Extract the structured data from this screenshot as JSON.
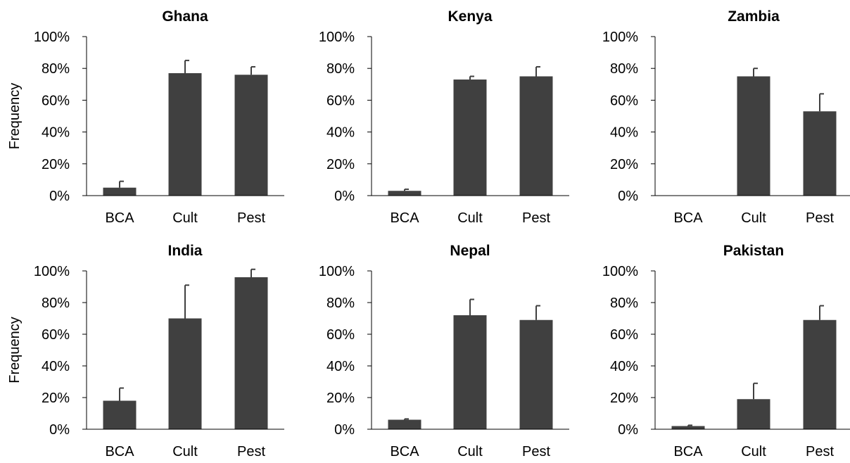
{
  "chart_data": [
    {
      "type": "bar",
      "title": "Ghana",
      "ylabel": "Frequency",
      "categories": [
        "BCA",
        "Cult",
        "Pest"
      ],
      "values": [
        0.05,
        0.77,
        0.76
      ],
      "errors": [
        0.04,
        0.08,
        0.05
      ],
      "ylim": [
        0,
        1
      ],
      "yticks": [
        "0%",
        "20%",
        "40%",
        "60%",
        "80%",
        "100%"
      ]
    },
    {
      "type": "bar",
      "title": "Kenya",
      "ylabel": "",
      "categories": [
        "BCA",
        "Cult",
        "Pest"
      ],
      "values": [
        0.03,
        0.73,
        0.75
      ],
      "errors": [
        0.01,
        0.02,
        0.06
      ],
      "ylim": [
        0,
        1
      ],
      "yticks": [
        "0%",
        "20%",
        "40%",
        "60%",
        "80%",
        "100%"
      ]
    },
    {
      "type": "bar",
      "title": "Zambia",
      "ylabel": "",
      "categories": [
        "BCA",
        "Cult",
        "Pest"
      ],
      "values": [
        0.0,
        0.75,
        0.53
      ],
      "errors": [
        0.0,
        0.05,
        0.11
      ],
      "ylim": [
        0,
        1
      ],
      "yticks": [
        "0%",
        "20%",
        "40%",
        "60%",
        "80%",
        "100%"
      ]
    },
    {
      "type": "bar",
      "title": "India",
      "ylabel": "Frequency",
      "categories": [
        "BCA",
        "Cult",
        "Pest"
      ],
      "values": [
        0.18,
        0.7,
        0.96
      ],
      "errors": [
        0.08,
        0.21,
        0.05
      ],
      "ylim": [
        0,
        1
      ],
      "yticks": [
        "0%",
        "20%",
        "40%",
        "60%",
        "80%",
        "100%"
      ]
    },
    {
      "type": "bar",
      "title": "Nepal",
      "ylabel": "",
      "categories": [
        "BCA",
        "Cult",
        "Pest"
      ],
      "values": [
        0.06,
        0.72,
        0.69
      ],
      "errors": [
        0.005,
        0.1,
        0.09
      ],
      "ylim": [
        0,
        1
      ],
      "yticks": [
        "0%",
        "20%",
        "40%",
        "60%",
        "80%",
        "100%"
      ]
    },
    {
      "type": "bar",
      "title": "Pakistan",
      "ylabel": "",
      "categories": [
        "BCA",
        "Cult",
        "Pest"
      ],
      "values": [
        0.02,
        0.19,
        0.69
      ],
      "errors": [
        0.005,
        0.1,
        0.09
      ],
      "ylim": [
        0,
        1
      ],
      "yticks": [
        "0%",
        "20%",
        "40%",
        "60%",
        "80%",
        "100%"
      ]
    }
  ],
  "colors": {
    "bar": "#404040",
    "axis": "#000000",
    "error_bar": "#404040"
  }
}
